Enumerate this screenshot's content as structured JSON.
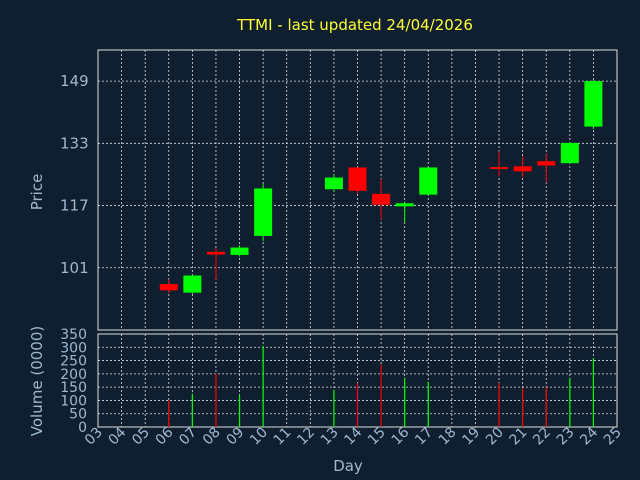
{
  "chart_data": [
    {
      "type": "candlestick",
      "title": "TTMI - last updated 24/04/2026",
      "ylabel": "Price",
      "xlabel": "Day",
      "ylim": [
        85,
        157
      ],
      "yticks": [
        101,
        117,
        133,
        149
      ],
      "grid": true,
      "colors": {
        "up": "#00ff00",
        "down": "#ff0000",
        "background": "#0f1f30",
        "title": "#ffff33",
        "axis_text": "#9fb8d0"
      },
      "candles": [
        {
          "day": "06",
          "open": 96.8,
          "close": 95.2,
          "high": 98.0,
          "low": 94.5
        },
        {
          "day": "07",
          "open": 94.6,
          "close": 99.0,
          "high": 99.2,
          "low": 94.3
        },
        {
          "day": "08",
          "open": 105.1,
          "close": 104.4,
          "high": 106.1,
          "low": 98.0
        },
        {
          "day": "09",
          "open": 104.3,
          "close": 106.2,
          "high": 106.8,
          "low": 103.9
        },
        {
          "day": "10",
          "open": 109.2,
          "close": 121.4,
          "high": 122.5,
          "low": 107.9
        },
        {
          "day": "13",
          "open": 121.2,
          "close": 124.2,
          "high": 124.9,
          "low": 120.6
        },
        {
          "day": "14",
          "open": 126.8,
          "close": 120.8,
          "high": 126.8,
          "low": 120.1
        },
        {
          "day": "15",
          "open": 120.0,
          "close": 117.2,
          "high": 123.8,
          "low": 113.4
        },
        {
          "day": "16",
          "open": 116.8,
          "close": 117.6,
          "high": 118.0,
          "low": 112.7
        },
        {
          "day": "17",
          "open": 119.8,
          "close": 126.8,
          "high": 126.8,
          "low": 119.5
        },
        {
          "day": "20",
          "open": 126.9,
          "close": 126.7,
          "high": 130.9,
          "low": 124.5
        },
        {
          "day": "21",
          "open": 127.1,
          "close": 125.8,
          "high": 129.7,
          "low": 124.3
        },
        {
          "day": "22",
          "open": 128.4,
          "close": 127.3,
          "high": 130.4,
          "low": 122.9
        },
        {
          "day": "23",
          "open": 127.9,
          "close": 133.1,
          "high": 133.3,
          "low": 127.7
        },
        {
          "day": "24",
          "open": 137.3,
          "close": 149.0,
          "high": 149.3,
          "low": 136.7
        }
      ]
    },
    {
      "type": "bar",
      "ylabel": "Volume (0000)",
      "ylim": [
        0,
        350
      ],
      "yticks": [
        0,
        50,
        100,
        150,
        200,
        250,
        300,
        350
      ],
      "categories": [
        "03",
        "04",
        "05",
        "06",
        "07",
        "08",
        "09",
        "10",
        "11",
        "12",
        "13",
        "14",
        "15",
        "16",
        "17",
        "18",
        "19",
        "20",
        "21",
        "22",
        "23",
        "24",
        "25"
      ],
      "volumes": [
        {
          "day": "06",
          "value": 100,
          "direction": "down"
        },
        {
          "day": "07",
          "value": 125,
          "direction": "up"
        },
        {
          "day": "08",
          "value": 200,
          "direction": "down"
        },
        {
          "day": "09",
          "value": 120,
          "direction": "up"
        },
        {
          "day": "10",
          "value": 305,
          "direction": "up"
        },
        {
          "day": "13",
          "value": 140,
          "direction": "up"
        },
        {
          "day": "14",
          "value": 165,
          "direction": "down"
        },
        {
          "day": "15",
          "value": 235,
          "direction": "down"
        },
        {
          "day": "16",
          "value": 185,
          "direction": "up"
        },
        {
          "day": "17",
          "value": 170,
          "direction": "up"
        },
        {
          "day": "20",
          "value": 165,
          "direction": "down"
        },
        {
          "day": "21",
          "value": 145,
          "direction": "down"
        },
        {
          "day": "22",
          "value": 150,
          "direction": "down"
        },
        {
          "day": "23",
          "value": 185,
          "direction": "up"
        },
        {
          "day": "24",
          "value": 260,
          "direction": "up"
        }
      ]
    }
  ]
}
